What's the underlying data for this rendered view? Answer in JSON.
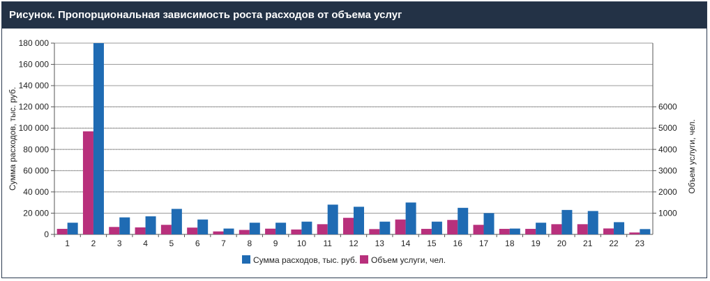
{
  "title": "Рисунок. Пропорциональная зависимость роста расходов от объема услуг",
  "colors": {
    "series1": "#1f6bb3",
    "series2": "#b8307c",
    "header_bg": "#233246"
  },
  "chart_data": {
    "type": "bar",
    "title": "Рисунок. Пропорциональная зависимость роста расходов от объема услуг",
    "categories": [
      "1",
      "2",
      "3",
      "4",
      "5",
      "6",
      "7",
      "8",
      "9",
      "10",
      "11",
      "12",
      "13",
      "14",
      "15",
      "16",
      "17",
      "18",
      "19",
      "20",
      "21",
      "22",
      "23"
    ],
    "ylabel": "Сумма расходов, тыс. руб.",
    "ylabel_right": "Объем услуги, чел.",
    "ylim": [
      0,
      180000
    ],
    "ylim_right": [
      0,
      9000
    ],
    "y_ticks": [
      "0",
      "20 000",
      "40 000",
      "60 000",
      "80 000",
      "100 000",
      "120 000",
      "140 000",
      "160 000",
      "180 000"
    ],
    "y_ticks_right": [
      "1000",
      "2000",
      "3000",
      "4000",
      "5000",
      "6000"
    ],
    "series": [
      {
        "name": "Сумма расходов, тыс. руб.",
        "axis": "left",
        "values": [
          11000,
          180000,
          16000,
          17000,
          24000,
          14000,
          5500,
          11000,
          11000,
          12000,
          28000,
          26000,
          12000,
          30000,
          12000,
          25000,
          20000,
          5500,
          11000,
          23000,
          22000,
          11500,
          5000
        ]
      },
      {
        "name": "Объем услуги, чел.",
        "axis": "right",
        "values": [
          260,
          4850,
          350,
          330,
          450,
          320,
          140,
          210,
          270,
          230,
          480,
          780,
          250,
          700,
          260,
          680,
          450,
          260,
          260,
          480,
          480,
          280,
          90
        ]
      }
    ],
    "legend": [
      "Сумма расходов, тыс. руб.",
      "Объем услуги, чел."
    ],
    "legend_position": "bottom"
  }
}
